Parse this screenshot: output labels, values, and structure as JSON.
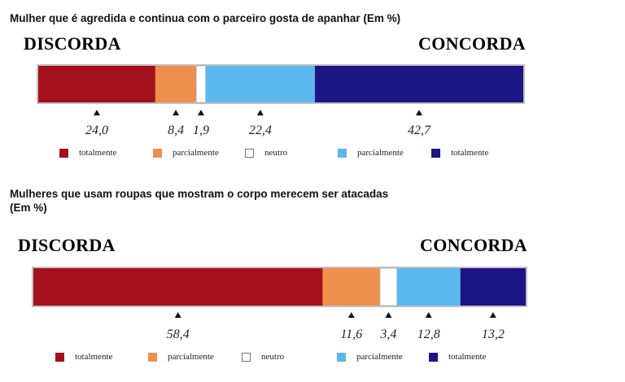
{
  "chart_data": [
    {
      "type": "bar",
      "title": "Mulher que é agredida e continua com o parceiro gosta de apanhar (Em %)",
      "left_label": "DISCORDA",
      "right_label": "CONCORDA",
      "series": [
        {
          "name": "totalmente",
          "value": 24.0,
          "label": "24,0",
          "color": "#a4111c"
        },
        {
          "name": "parcialmente",
          "value": 8.4,
          "label": "8,4",
          "color": "#ef8f4d"
        },
        {
          "name": "neutro",
          "value": 1.9,
          "label": "1,9",
          "color": "#ffffff"
        },
        {
          "name": "parcialmente",
          "value": 22.4,
          "label": "22,4",
          "color": "#5cb7ef"
        },
        {
          "name": "totalmente",
          "value": 42.7,
          "label": "42,7",
          "color": "#1c1584"
        }
      ]
    },
    {
      "type": "bar",
      "title": "Mulheres que usam roupas que mostram o corpo merecem ser atacadas (Em %)",
      "title_lines": [
        "Mulheres que usam roupas que mostram o corpo merecem ser atacadas",
        "(Em %)"
      ],
      "left_label": "DISCORDA",
      "right_label": "CONCORDA",
      "series": [
        {
          "name": "totalmente",
          "value": 58.4,
          "label": "58,4",
          "color": "#a4111c"
        },
        {
          "name": "parcialmente",
          "value": 11.6,
          "label": "11,6",
          "color": "#ef8f4d"
        },
        {
          "name": "neutro",
          "value": 3.4,
          "label": "3,4",
          "color": "#ffffff"
        },
        {
          "name": "parcialmente",
          "value": 12.8,
          "label": "12,8",
          "color": "#5cb7ef"
        },
        {
          "name": "totalmente",
          "value": 13.2,
          "label": "13,2",
          "color": "#1c1584"
        }
      ]
    }
  ],
  "colors": {
    "discorda": "#a4111c",
    "concorda": "#1c1584",
    "outline": "#9a9a9a"
  }
}
